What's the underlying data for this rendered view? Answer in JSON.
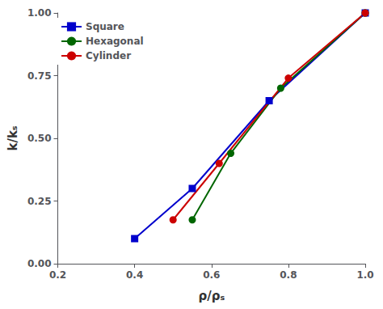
{
  "chart_data": {
    "type": "line",
    "x_label": "ρ/ρₛ",
    "y_label": "k/kₛ",
    "series": [
      {
        "name": "Square",
        "x": [
          0.4,
          0.55,
          0.75,
          1.0
        ],
        "values": [
          0.1,
          0.3,
          0.65,
          1.0
        ],
        "color": "#0000CC",
        "marker": "square"
      },
      {
        "name": "Hexagonal",
        "x": [
          0.55,
          0.65,
          0.78,
          1.0
        ],
        "values": [
          0.175,
          0.44,
          0.7,
          1.0
        ],
        "color": "#006600",
        "marker": "circle"
      },
      {
        "name": "Cylinder",
        "x": [
          0.5,
          0.62,
          0.8,
          1.0
        ],
        "values": [
          0.175,
          0.4,
          0.74,
          1.0
        ],
        "color": "#CC0000",
        "marker": "circle"
      }
    ],
    "xlim": [
      0.2,
      1.0
    ],
    "ylim": [
      0.0,
      1.0
    ],
    "xticks": [
      0.2,
      0.4,
      0.6,
      0.8,
      {
        "value": 1.0,
        "label": "1.0"
      }
    ],
    "yticks": [
      {
        "value": 0.0,
        "label": "0.00"
      },
      0.25,
      {
        "value": 0.5,
        "label": "0.50"
      },
      0.75,
      {
        "value": 1.0,
        "label": "1.00"
      }
    ],
    "grid": false,
    "legend": "upper left"
  }
}
